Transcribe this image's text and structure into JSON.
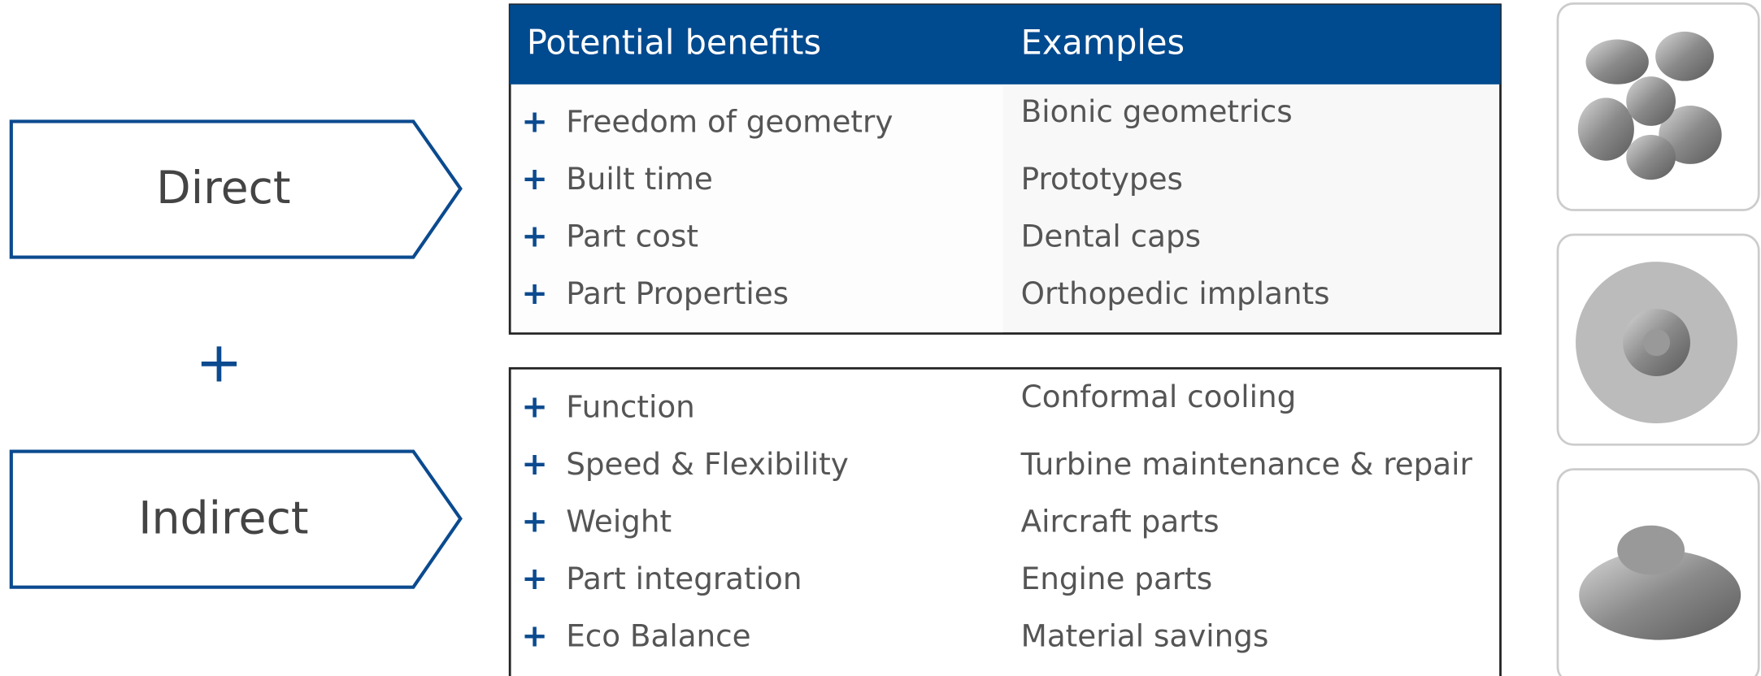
{
  "labels": {
    "direct": "Direct",
    "plus": "+",
    "indirect": "Indirect"
  },
  "table": {
    "bullet": "+",
    "headers": [
      "Potential benefits",
      "Examples"
    ],
    "direct_rows": [
      [
        "Freedom of geometry",
        "Bionic geometrics"
      ],
      [
        "Built time",
        "Prototypes"
      ],
      [
        "Part cost",
        "Dental caps"
      ],
      [
        "Part Properties",
        "Orthopedic implants"
      ]
    ],
    "indirect_rows": [
      [
        "Function",
        "Conformal cooling"
      ],
      [
        "Speed & Flexibility",
        "Turbine maintenance & repair"
      ],
      [
        "Weight",
        "Aircraft parts"
      ],
      [
        "Part integration",
        "Engine parts"
      ],
      [
        "Eco Balance",
        "Material savings"
      ]
    ]
  }
}
